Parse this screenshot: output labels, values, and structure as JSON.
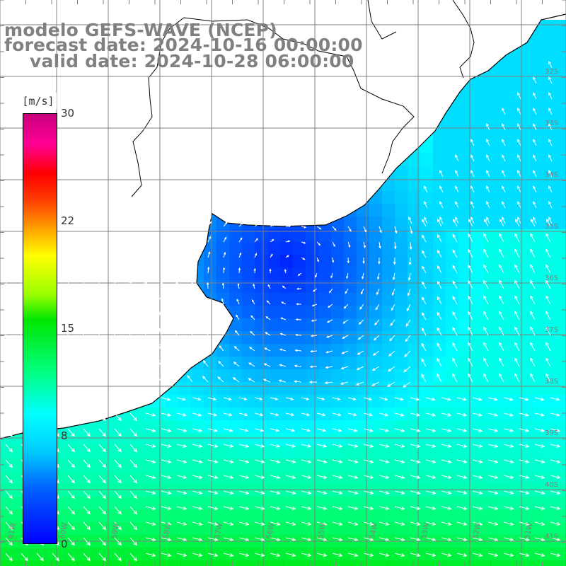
{
  "title": {
    "model": "modelo GEFS-WAVE (NCEP)",
    "forecast": "forecast date: 2024-10-16 00:00:00",
    "valid": "valid date: 2024-10-28 06:00:00"
  },
  "colorbar": {
    "unit": "[m/s]",
    "min": 0,
    "max": 30,
    "ticks": [
      "30",
      "22",
      "15",
      "8",
      "0"
    ]
  },
  "lat_labels": [
    "32S",
    "33S",
    "34S",
    "35S",
    "36S",
    "37S",
    "38S",
    "39S",
    "40S",
    "41S"
  ],
  "lon_labels": [
    "61W",
    "60W",
    "59W",
    "58W",
    "57W",
    "56W",
    "55W",
    "54W",
    "53W",
    "52W",
    "51W"
  ],
  "colors": {
    "land": "#ffffff",
    "coast": "#000000",
    "grid": "#808080",
    "arrow": "#ffffff",
    "text": "#808080"
  }
}
